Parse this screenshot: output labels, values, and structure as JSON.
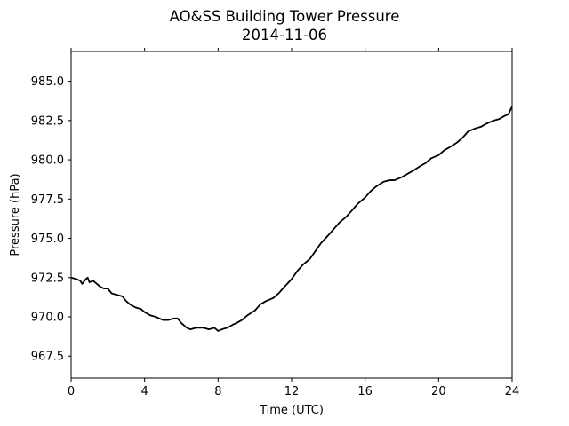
{
  "chart_data": {
    "type": "line",
    "title": "AO&SS Building Tower Pressure",
    "subtitle": "2014-11-06",
    "xlabel": "Time (UTC)",
    "ylabel": "Pressure (hPa)",
    "xlim": [
      0,
      24
    ],
    "ylim": [
      966.1,
      986.9
    ],
    "x_ticks": [
      0,
      4,
      8,
      12,
      16,
      20,
      24
    ],
    "x_tick_labels": [
      "0",
      "4",
      "8",
      "12",
      "16",
      "20",
      "24"
    ],
    "y_ticks": [
      967.5,
      970.0,
      972.5,
      975.0,
      977.5,
      980.0,
      982.5,
      985.0
    ],
    "y_tick_labels": [
      "967.5",
      "970.0",
      "972.5",
      "975.0",
      "977.5",
      "980.0",
      "982.5",
      "985.0"
    ],
    "grid": false,
    "legend": "none",
    "line_color": "#000000",
    "series": [
      {
        "x": [
          0.0,
          0.3,
          0.5,
          0.6,
          0.8,
          0.9,
          1.0,
          1.2,
          1.4,
          1.6,
          1.8,
          2.0,
          2.2,
          2.5,
          2.8,
          3.0,
          3.2,
          3.5,
          3.8,
          4.0,
          4.3,
          4.6,
          5.0,
          5.3,
          5.6,
          5.8,
          6.0,
          6.3,
          6.5,
          6.8,
          7.0,
          7.2,
          7.5,
          7.8,
          8.0,
          8.2,
          8.5,
          8.8,
          9.0,
          9.3,
          9.6,
          10.0,
          10.3,
          10.6,
          11.0,
          11.3,
          11.6,
          12.0,
          12.3,
          12.6,
          13.0,
          13.3,
          13.6,
          14.0,
          14.3,
          14.6,
          15.0,
          15.3,
          15.6,
          16.0,
          16.3,
          16.6,
          17.0,
          17.3,
          17.6,
          18.0,
          18.3,
          18.6,
          19.0,
          19.3,
          19.6,
          20.0,
          20.3,
          20.6,
          21.0,
          21.3,
          21.6,
          22.0,
          22.3,
          22.6,
          23.0,
          23.3,
          23.6,
          23.8,
          24.0
        ],
        "y": [
          972.5,
          972.4,
          972.3,
          972.1,
          972.4,
          972.5,
          972.2,
          972.3,
          972.1,
          971.9,
          971.8,
          971.8,
          971.5,
          971.4,
          971.3,
          971.0,
          970.8,
          970.6,
          970.5,
          970.3,
          970.1,
          970.0,
          969.8,
          969.8,
          969.9,
          969.9,
          969.6,
          969.3,
          969.2,
          969.3,
          969.3,
          969.3,
          969.2,
          969.3,
          969.1,
          969.2,
          969.3,
          969.5,
          969.6,
          969.8,
          970.1,
          970.4,
          970.8,
          971.0,
          971.2,
          971.5,
          971.9,
          972.4,
          972.9,
          973.3,
          973.7,
          974.2,
          974.7,
          975.2,
          975.6,
          976.0,
          976.4,
          976.8,
          977.2,
          977.6,
          978.0,
          978.3,
          978.6,
          978.7,
          978.7,
          978.9,
          979.1,
          979.3,
          979.6,
          979.8,
          980.1,
          980.3,
          980.6,
          980.8,
          981.1,
          981.4,
          981.8,
          982.0,
          982.1,
          982.3,
          982.5,
          982.6,
          982.8,
          982.9,
          983.4
        ]
      }
    ]
  }
}
